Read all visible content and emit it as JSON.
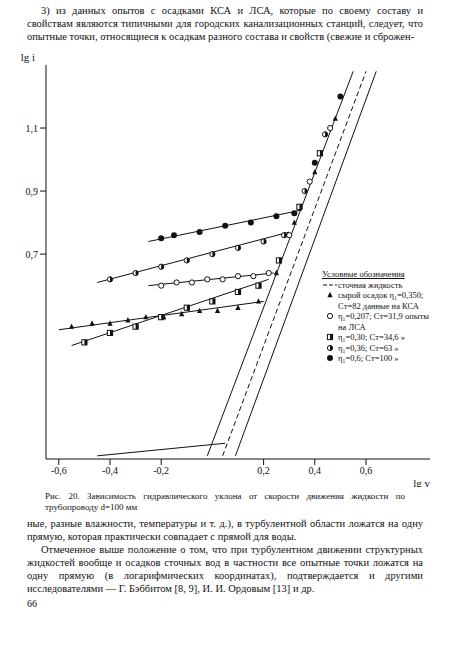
{
  "page": {
    "text_top": "3) из данных опытов с осадками КСА и ЛСА, которые по своему составу и свойствам являются типичными для городских канализационных станций, следует, что опытные точки, относящиеся к осадкам разного состава и свойств (свежие и сброжен-",
    "caption": "Рис. 20. Зависимость гидравлического уклона от скорости движения жидкости по трубопроводу d=100 мм",
    "paragraphs": [
      "ные, разные влажности, температуры и т. д.), в турбулентной области ложатся на одну прямую, которая практически совпадает с прямой для воды.",
      "Отмеченное выше положение о том, что при турбулентном движении структурных жидкостей вообще и осадков сточных вод в частности все опытные точки ложатся на одну прямую (в логарифмических координатах), подтверждается и другими исследователями — Г. Бэббитом [8, 9], И. И. Ордовым [13] и др."
    ],
    "page_number": 66
  },
  "chart_data": {
    "type": "scatter",
    "x_label": "lg v",
    "y_label": "lg i",
    "xlim": [
      -0.65,
      0.85
    ],
    "ylim": [
      0.05,
      1.3
    ],
    "xticks": [
      {
        "value": -0.6,
        "label": "-0,6"
      },
      {
        "value": -0.4,
        "label": "-0,4"
      },
      {
        "value": -0.2,
        "label": "-0,2"
      },
      {
        "value": 0.2,
        "label": "0,2"
      },
      {
        "value": 0.4,
        "label": "0,4"
      },
      {
        "value": 0.6,
        "label": "0,6"
      }
    ],
    "yticks": [
      {
        "value": 0.7,
        "label": "0,7"
      },
      {
        "value": 0.9,
        "label": "0,9"
      },
      {
        "value": 1.1,
        "label": "1,1"
      }
    ],
    "grid": false,
    "legend": "lower right",
    "legend_title": "Условные обозначения",
    "series": [
      {
        "type": "line",
        "name": "сточная жидкость",
        "line_style": "dashed",
        "color": "#111111",
        "x": [
          0.04,
          0.6
        ],
        "values": [
          0.06,
          1.28
        ]
      },
      {
        "type": "line",
        "line_style": "solid",
        "color": "#111111",
        "x": [
          -0.02,
          0.55
        ],
        "values": [
          0.06,
          1.28
        ]
      },
      {
        "type": "line",
        "line_style": "solid",
        "color": "#111111",
        "x": [
          0.09,
          0.64
        ],
        "values": [
          0.06,
          1.28
        ]
      },
      {
        "type": "line",
        "line_style": "solid",
        "color": "#111111",
        "x": [
          -0.6,
          0.2
        ],
        "values": [
          0.46,
          0.55
        ]
      },
      {
        "type": "line",
        "line_style": "solid",
        "color": "#111111",
        "x": [
          -0.55,
          0.22
        ],
        "values": [
          0.41,
          0.62
        ]
      },
      {
        "type": "line",
        "line_style": "solid",
        "color": "#111111",
        "x": [
          -0.25,
          0.24
        ],
        "values": [
          0.6,
          0.64
        ]
      },
      {
        "type": "line",
        "line_style": "solid",
        "color": "#111111",
        "x": [
          -0.45,
          0.3
        ],
        "values": [
          0.61,
          0.77
        ]
      },
      {
        "type": "line",
        "line_style": "solid",
        "color": "#111111",
        "x": [
          -0.25,
          0.35
        ],
        "values": [
          0.74,
          0.84
        ]
      },
      {
        "type": "line",
        "line_style": "solid",
        "color": "#111111",
        "x": [
          -0.45,
          0.05
        ],
        "values": [
          0.06,
          0.1
        ]
      },
      {
        "type": "scatter",
        "name": "сырой осадок η₁=0,350; Cт=82 данные на КСА",
        "marker": "triangle",
        "color": "#111111",
        "x": [
          -0.55,
          -0.47,
          -0.4,
          -0.33,
          -0.26,
          -0.19,
          -0.12,
          -0.05,
          0.02,
          0.1,
          0.18,
          0.25,
          0.32,
          0.4,
          0.48
        ],
        "values": [
          0.47,
          0.48,
          0.48,
          0.49,
          0.5,
          0.5,
          0.51,
          0.52,
          0.52,
          0.53,
          0.55,
          0.64,
          0.8,
          0.96,
          1.13
        ]
      },
      {
        "type": "scatter",
        "name": "η₁=0,207; Cт=31,9 опыты на ЛСА",
        "marker": "circle_open",
        "color": "#111111",
        "x": [
          -0.2,
          -0.14,
          -0.08,
          -0.02,
          0.04,
          0.1,
          0.16,
          0.22,
          0.3,
          0.38,
          0.46
        ],
        "values": [
          0.6,
          0.61,
          0.61,
          0.62,
          0.62,
          0.63,
          0.63,
          0.64,
          0.76,
          0.93,
          1.1
        ]
      },
      {
        "type": "scatter",
        "name": "η₁=0,30; Cт=34,6 »",
        "marker": "square_half",
        "color": "#111111",
        "x": [
          -0.5,
          -0.4,
          -0.3,
          -0.2,
          -0.1,
          0.0,
          0.1,
          0.18,
          0.26,
          0.34,
          0.42
        ],
        "values": [
          0.42,
          0.45,
          0.47,
          0.5,
          0.53,
          0.55,
          0.58,
          0.6,
          0.68,
          0.85,
          1.02
        ]
      },
      {
        "type": "scatter",
        "name": "η₁=0,36; Cт=63 »",
        "marker": "circle_half",
        "color": "#111111",
        "x": [
          -0.4,
          -0.3,
          -0.2,
          -0.1,
          0.0,
          0.1,
          0.2,
          0.28,
          0.36,
          0.44
        ],
        "values": [
          0.62,
          0.64,
          0.66,
          0.68,
          0.7,
          0.72,
          0.74,
          0.76,
          0.9,
          1.08
        ]
      },
      {
        "type": "scatter",
        "name": "η₁=0,6; Cт=100 »",
        "marker": "circle",
        "color": "#111111",
        "x": [
          -0.2,
          -0.15,
          -0.05,
          0.05,
          0.15,
          0.25,
          0.32,
          0.4,
          0.5
        ],
        "values": [
          0.75,
          0.76,
          0.77,
          0.79,
          0.8,
          0.82,
          0.83,
          0.99,
          1.2
        ]
      }
    ]
  }
}
